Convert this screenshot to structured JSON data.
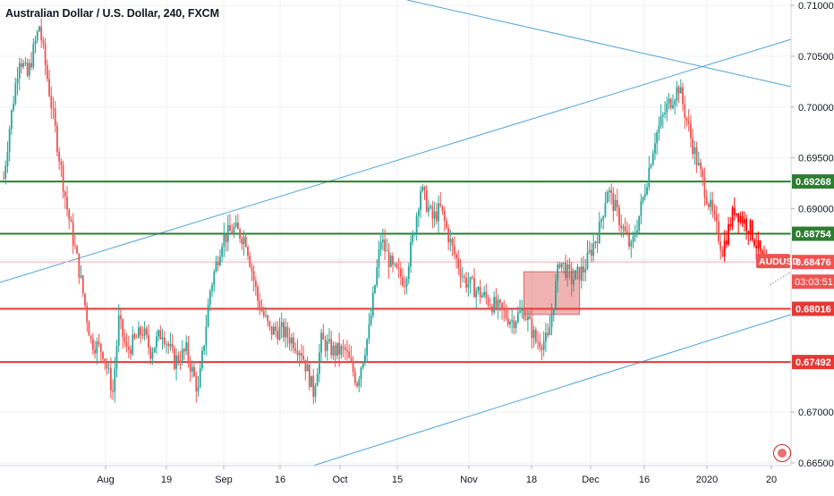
{
  "chart_data": {
    "type": "line",
    "title": "Australian Dollar / U.S. Dollar, 240, FXCM",
    "symbol_tag": "AUDUSD",
    "countdown": "03:03:51",
    "price_axis": {
      "ylim": [
        0.665,
        0.711
      ],
      "tick_labels": [
        "0.71000",
        "0.70500",
        "0.70000",
        "0.69500",
        "0.69000",
        "0.68500",
        "0.68000",
        "0.67500",
        "0.67000",
        "0.66500"
      ],
      "tick_values": [
        0.71,
        0.705,
        0.7,
        0.695,
        0.69,
        0.685,
        0.68,
        0.675,
        0.67,
        0.665
      ]
    },
    "time_axis": {
      "labels": [
        "Aug",
        "19",
        "Sep",
        "16",
        "Oct",
        "15",
        "Nov",
        "18",
        "Dec",
        "16",
        "2020",
        "20"
      ],
      "label_index": [
        0,
        1,
        2,
        3,
        4,
        5,
        6,
        7,
        8,
        9,
        10,
        11
      ]
    },
    "levels": [
      {
        "value": 0.69268,
        "label": "0.69268",
        "color": "#2e7d32"
      },
      {
        "value": 0.68754,
        "label": "0.68754",
        "color": "#2e7d32"
      },
      {
        "value": 0.68016,
        "label": "0.68016",
        "color": "#e53935"
      },
      {
        "value": 0.67492,
        "label": "0.67492",
        "color": "#e53935"
      }
    ],
    "current_price": {
      "value": 0.68476,
      "label": "0.68476",
      "color": "#ef5350"
    },
    "price_path": [
      [
        0,
        0.693
      ],
      [
        3,
        0.698
      ],
      [
        8,
        0.705
      ],
      [
        12,
        0.703
      ],
      [
        18,
        0.708
      ],
      [
        25,
        0.699
      ],
      [
        32,
        0.69
      ],
      [
        38,
        0.684
      ],
      [
        44,
        0.677
      ],
      [
        50,
        0.676
      ],
      [
        55,
        0.672
      ],
      [
        58,
        0.679
      ],
      [
        62,
        0.676
      ],
      [
        66,
        0.677
      ],
      [
        70,
        0.678
      ],
      [
        74,
        0.676
      ],
      [
        80,
        0.678
      ],
      [
        86,
        0.675
      ],
      [
        92,
        0.676
      ],
      [
        98,
        0.672
      ],
      [
        104,
        0.682
      ],
      [
        110,
        0.687
      ],
      [
        116,
        0.688
      ],
      [
        122,
        0.687
      ],
      [
        128,
        0.681
      ],
      [
        134,
        0.678
      ],
      [
        140,
        0.678
      ],
      [
        146,
        0.677
      ],
      [
        150,
        0.676
      ],
      [
        156,
        0.672
      ],
      [
        160,
        0.677
      ],
      [
        166,
        0.676
      ],
      [
        172,
        0.676
      ],
      [
        178,
        0.673
      ],
      [
        184,
        0.678
      ],
      [
        190,
        0.687
      ],
      [
        196,
        0.684
      ],
      [
        202,
        0.683
      ],
      [
        206,
        0.687
      ],
      [
        210,
        0.692
      ],
      [
        216,
        0.689
      ],
      [
        220,
        0.69
      ],
      [
        226,
        0.686
      ],
      [
        232,
        0.683
      ],
      [
        238,
        0.682
      ],
      [
        244,
        0.681
      ],
      [
        250,
        0.68
      ],
      [
        256,
        0.679
      ],
      [
        262,
        0.68
      ],
      [
        268,
        0.677
      ],
      [
        274,
        0.677
      ],
      [
        280,
        0.685
      ],
      [
        286,
        0.683
      ],
      [
        292,
        0.684
      ],
      [
        296,
        0.686
      ],
      [
        300,
        0.688
      ],
      [
        304,
        0.692
      ],
      [
        310,
        0.689
      ],
      [
        316,
        0.686
      ],
      [
        322,
        0.691
      ],
      [
        328,
        0.697
      ],
      [
        334,
        0.7
      ],
      [
        340,
        0.702
      ],
      [
        346,
        0.697
      ],
      [
        350,
        0.694
      ],
      [
        356,
        0.69
      ],
      [
        362,
        0.686
      ],
      [
        368,
        0.69
      ],
      [
        372,
        0.689
      ],
      [
        376,
        0.688
      ],
      [
        380,
        0.686
      ],
      [
        384,
        0.684
      ]
    ],
    "highlight_box": {
      "x_start": 262,
      "x_end": 290,
      "y_top": 0.6838,
      "y_bottom": 0.6796
    }
  }
}
